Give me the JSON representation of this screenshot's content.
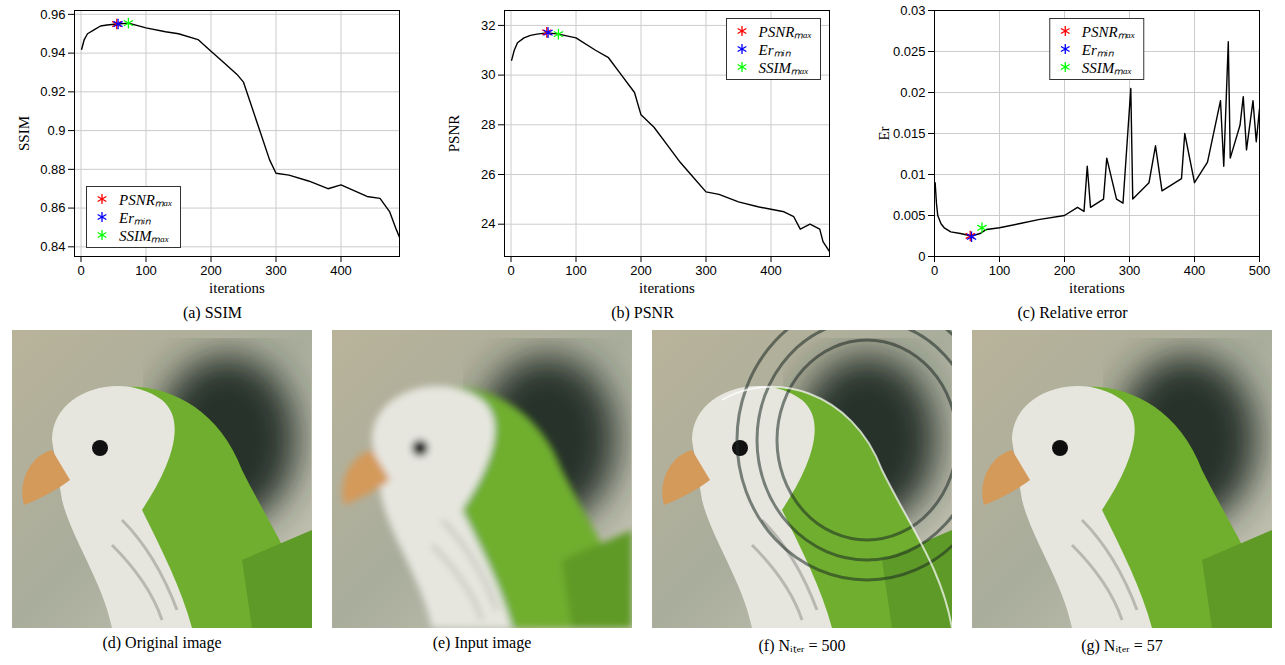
{
  "chart_data": [
    {
      "type": "line",
      "title": "(a) SSIM",
      "x_label": "iterations",
      "y_label": "SSIM",
      "color": "#000000",
      "grid": true,
      "legend": "lower left",
      "xlim": [
        -10,
        490
      ],
      "xticks": [
        0,
        100,
        200,
        300,
        400
      ],
      "ylim": [
        0.835,
        0.962
      ],
      "yticks": [
        0.84,
        0.86,
        0.88,
        0.9,
        0.92,
        0.94,
        0.96
      ],
      "x": [
        1,
        5,
        10,
        20,
        30,
        40,
        55,
        57,
        73,
        100,
        130,
        150,
        180,
        200,
        220,
        240,
        250,
        260,
        275,
        290,
        300,
        320,
        350,
        380,
        400,
        420,
        440,
        460,
        475,
        485,
        490
      ],
      "values": [
        0.942,
        0.947,
        0.95,
        0.952,
        0.954,
        0.9545,
        0.955,
        0.955,
        0.9555,
        0.953,
        0.951,
        0.95,
        0.947,
        0.941,
        0.935,
        0.929,
        0.925,
        0.915,
        0.9,
        0.885,
        0.878,
        0.877,
        0.874,
        0.87,
        0.872,
        0.869,
        0.866,
        0.865,
        0.858,
        0.849,
        0.845
      ],
      "series": [
        {
          "name": "PSNRₘₐₓ",
          "type": "scatter",
          "marker": "asterisk",
          "color": "#ff0000",
          "x": [
            55
          ],
          "values": [
            0.955
          ]
        },
        {
          "name": "Erₘᵢₙ",
          "type": "scatter",
          "marker": "asterisk",
          "color": "#0000ff",
          "x": [
            57
          ],
          "values": [
            0.955
          ]
        },
        {
          "name": "SSIMₘₐₓ",
          "type": "scatter",
          "marker": "asterisk",
          "color": "#00ff00",
          "x": [
            73
          ],
          "values": [
            0.9555
          ]
        }
      ]
    },
    {
      "type": "line",
      "title": "(b) PSNR",
      "x_label": "iterations",
      "y_label": "PSNR",
      "color": "#000000",
      "grid": true,
      "legend": "upper right",
      "xlim": [
        -10,
        490
      ],
      "xticks": [
        0,
        100,
        200,
        300,
        400
      ],
      "ylim": [
        22.7,
        32.6
      ],
      "yticks": [
        24,
        26,
        28,
        30,
        32
      ],
      "x": [
        1,
        5,
        10,
        20,
        30,
        40,
        55,
        57,
        73,
        100,
        130,
        150,
        170,
        190,
        200,
        220,
        240,
        260,
        280,
        300,
        320,
        350,
        380,
        400,
        420,
        435,
        445,
        460,
        475,
        480,
        490
      ],
      "values": [
        30.6,
        31.0,
        31.3,
        31.5,
        31.6,
        31.65,
        31.7,
        31.7,
        31.65,
        31.5,
        31.0,
        30.7,
        30.0,
        29.3,
        28.4,
        27.9,
        27.2,
        26.5,
        25.9,
        25.3,
        25.2,
        24.9,
        24.7,
        24.6,
        24.5,
        24.3,
        23.8,
        24.0,
        23.8,
        23.3,
        22.9
      ],
      "series": [
        {
          "name": "PSNRₘₐₓ",
          "type": "scatter",
          "marker": "asterisk",
          "color": "#ff0000",
          "x": [
            55
          ],
          "values": [
            31.72
          ]
        },
        {
          "name": "Erₘᵢₙ",
          "type": "scatter",
          "marker": "asterisk",
          "color": "#0000ff",
          "x": [
            57
          ],
          "values": [
            31.71
          ]
        },
        {
          "name": "SSIMₘₐₓ",
          "type": "scatter",
          "marker": "asterisk",
          "color": "#00ff00",
          "x": [
            73
          ],
          "values": [
            31.65
          ]
        }
      ]
    },
    {
      "type": "line",
      "title": "(c) Relative error",
      "x_label": "iterations",
      "y_label": "Er",
      "color": "#000000",
      "grid": true,
      "legend": "upper center",
      "xlim": [
        0,
        500
      ],
      "xticks": [
        0,
        100,
        200,
        300,
        400,
        500
      ],
      "ylim": [
        0,
        0.03
      ],
      "yticks": [
        0,
        0.005,
        0.01,
        0.015,
        0.02,
        0.025,
        0.03
      ],
      "x": [
        1,
        3,
        5,
        10,
        15,
        25,
        40,
        57,
        70,
        80,
        100,
        130,
        160,
        200,
        220,
        230,
        235,
        240,
        260,
        265,
        280,
        290,
        302,
        305,
        330,
        340,
        350,
        380,
        385,
        400,
        420,
        440,
        445,
        452,
        455,
        470,
        475,
        480,
        490,
        495,
        500
      ],
      "values": [
        0.009,
        0.0065,
        0.005,
        0.004,
        0.0035,
        0.003,
        0.0028,
        0.0025,
        0.0028,
        0.0033,
        0.0035,
        0.004,
        0.0045,
        0.005,
        0.006,
        0.0055,
        0.011,
        0.006,
        0.007,
        0.012,
        0.007,
        0.0065,
        0.0205,
        0.007,
        0.009,
        0.0135,
        0.008,
        0.0095,
        0.015,
        0.009,
        0.0115,
        0.019,
        0.011,
        0.0262,
        0.012,
        0.016,
        0.0195,
        0.013,
        0.019,
        0.014,
        0.018
      ],
      "series": [
        {
          "name": "PSNRₘₐₓ",
          "type": "scatter",
          "marker": "asterisk",
          "color": "#ff0000",
          "x": [
            55
          ],
          "values": [
            0.0025
          ]
        },
        {
          "name": "Erₘᵢₙ",
          "type": "scatter",
          "marker": "asterisk",
          "color": "#0000ff",
          "x": [
            57
          ],
          "values": [
            0.0024
          ]
        },
        {
          "name": "SSIMₘₐₓ",
          "type": "scatter",
          "marker": "asterisk",
          "color": "#00ff00",
          "x": [
            73
          ],
          "values": [
            0.0035
          ]
        }
      ]
    }
  ],
  "images": [
    {
      "caption": "(d) Original image"
    },
    {
      "caption": "(e) Input image"
    },
    {
      "caption": "(f) Nᵢₜₑᵣ = 500"
    },
    {
      "caption": "(g) Nᵢₜₑᵣ = 57"
    }
  ]
}
